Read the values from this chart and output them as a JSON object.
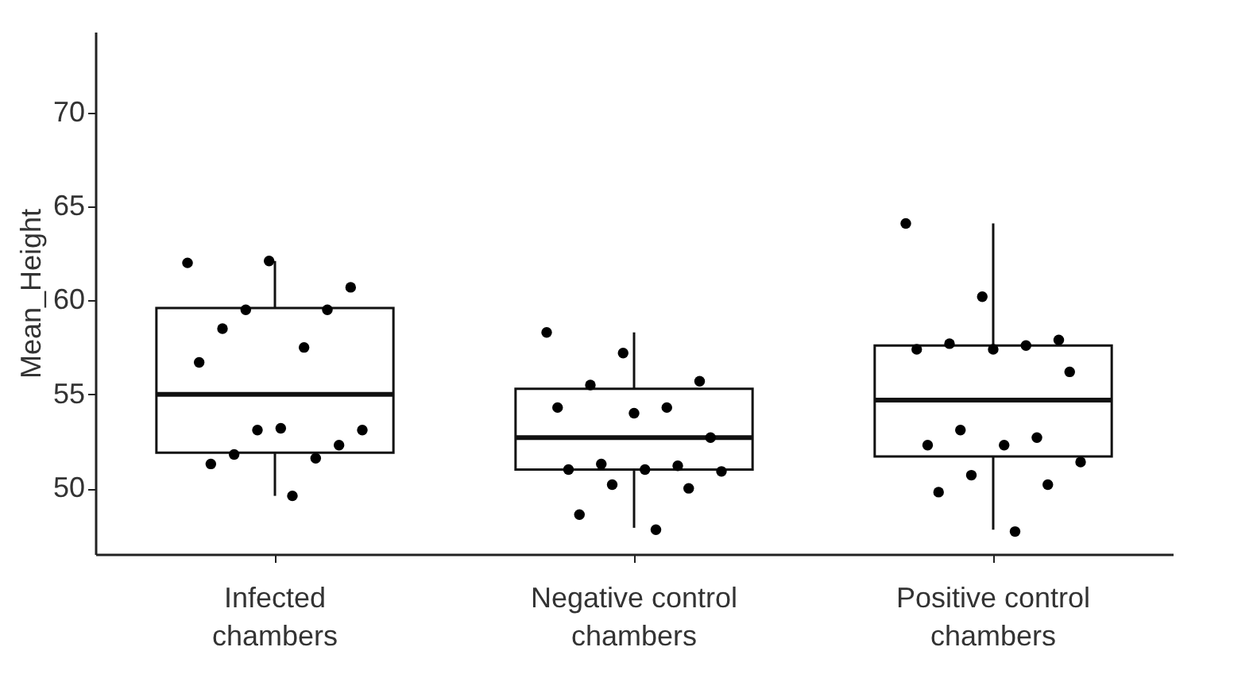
{
  "chart_data": {
    "type": "box",
    "ylabel": "Mean_Height",
    "categories": [
      "Infected chambers",
      "Negative control chambers",
      "Positive control chambers"
    ],
    "boxes": [
      {
        "low": 49.6,
        "q1": 51.9,
        "median": 55.0,
        "q3": 59.6,
        "high": 62.1
      },
      {
        "low": 47.9,
        "q1": 51.0,
        "median": 52.7,
        "q3": 55.3,
        "high": 58.3
      },
      {
        "low": 47.8,
        "q1": 51.7,
        "median": 54.7,
        "q3": 57.6,
        "high": 64.1
      }
    ],
    "series": [
      {
        "type": "scatter",
        "color": "#000000",
        "x": [
          "Infected chambers",
          "Infected chambers",
          "Infected chambers",
          "Infected chambers",
          "Infected chambers",
          "Infected chambers",
          "Infected chambers",
          "Infected chambers",
          "Infected chambers",
          "Infected chambers",
          "Infected chambers",
          "Infected chambers",
          "Infected chambers",
          "Infected chambers",
          "Infected chambers",
          "Infected chambers",
          "Negative control chambers",
          "Negative control chambers",
          "Negative control chambers",
          "Negative control chambers",
          "Negative control chambers",
          "Negative control chambers",
          "Negative control chambers",
          "Negative control chambers",
          "Negative control chambers",
          "Negative control chambers",
          "Negative control chambers",
          "Negative control chambers",
          "Negative control chambers",
          "Negative control chambers",
          "Negative control chambers",
          "Negative control chambers",
          "Negative control chambers",
          "Positive control chambers",
          "Positive control chambers",
          "Positive control chambers",
          "Positive control chambers",
          "Positive control chambers",
          "Positive control chambers",
          "Positive control chambers",
          "Positive control chambers",
          "Positive control chambers",
          "Positive control chambers",
          "Positive control chambers",
          "Positive control chambers",
          "Positive control chambers",
          "Positive control chambers",
          "Positive control chambers",
          "Positive control chambers",
          "Positive control chambers"
        ],
        "values": [
          62.0,
          62.1,
          60.7,
          59.5,
          59.5,
          58.5,
          57.5,
          56.7,
          53.2,
          53.1,
          53.1,
          52.3,
          51.8,
          51.6,
          51.3,
          49.6,
          58.3,
          57.2,
          55.7,
          55.5,
          54.3,
          54.3,
          54.0,
          52.7,
          51.3,
          51.2,
          51.0,
          51.0,
          50.9,
          50.2,
          50.0,
          48.6,
          47.8,
          64.1,
          60.2,
          57.9,
          57.7,
          57.6,
          57.4,
          57.4,
          56.2,
          53.1,
          52.7,
          52.3,
          52.3,
          51.4,
          50.7,
          50.2,
          49.8,
          47.7
        ]
      }
    ],
    "ylim": [
      46.5,
      74.3
    ],
    "yticks": [
      50,
      55,
      60,
      65,
      70
    ],
    "marker": "circle"
  }
}
